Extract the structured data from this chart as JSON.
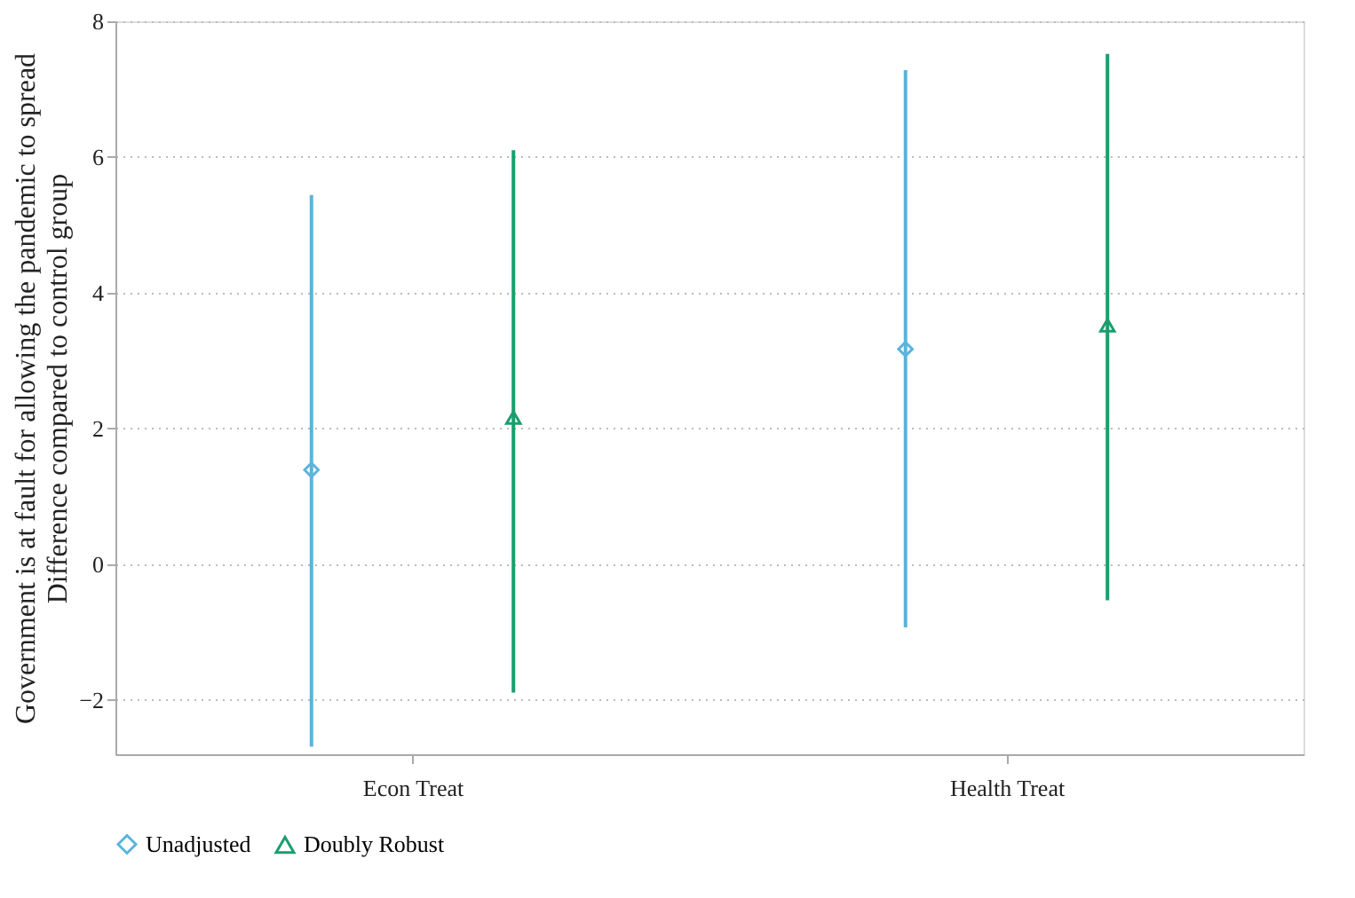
{
  "chart_data": {
    "type": "scatter",
    "ylabel": "Government is at fault for allowing the pandemic to spread\nDifference compared to control group",
    "categories": [
      "Econ Treat",
      "Health Treat"
    ],
    "series": [
      {
        "name": "Unadjusted",
        "color": "#5ab4dc",
        "marker": "diamond",
        "values": [
          1.39,
          3.17
        ],
        "errors": [
          [
            -2.69,
            5.44
          ],
          [
            -0.93,
            7.28
          ]
        ]
      },
      {
        "name": "Doubly Robust",
        "color": "#1a9e6e",
        "marker": "triangle",
        "values": [
          2.16,
          3.52
        ],
        "errors": [
          [
            -1.89,
            6.1
          ],
          [
            -0.53,
            7.52
          ]
        ]
      }
    ],
    "ylim": [
      -2.8,
      8
    ],
    "yticks": [
      -2,
      0,
      2,
      4,
      6,
      8
    ],
    "grid": "y",
    "legend": "bottom"
  }
}
